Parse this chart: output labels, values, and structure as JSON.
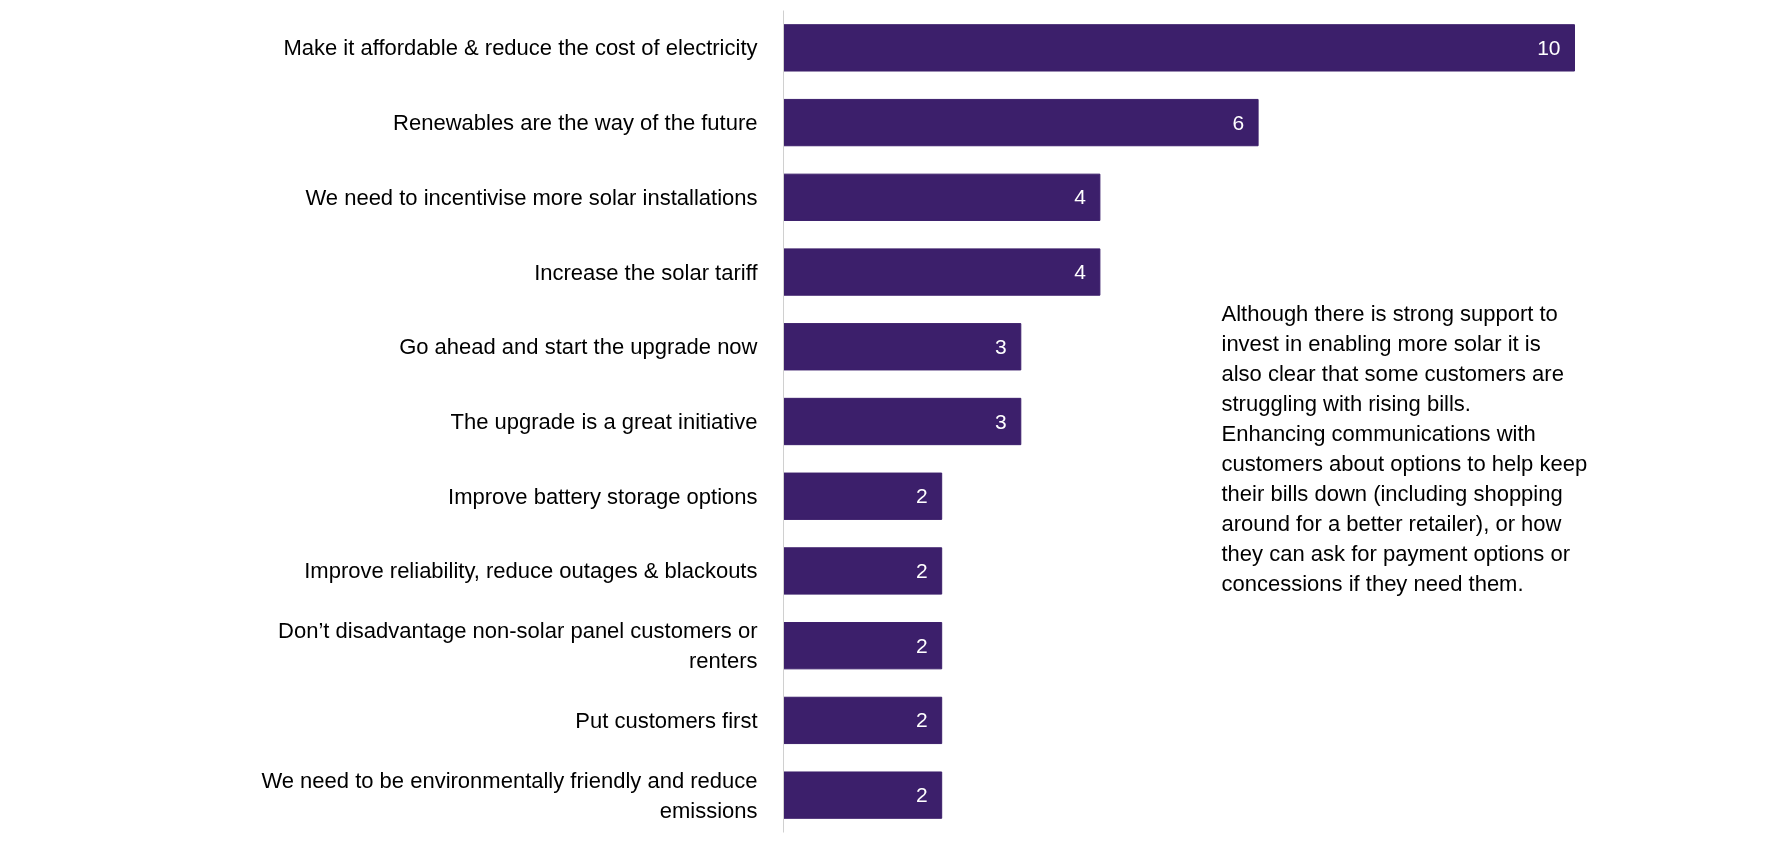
{
  "chart_data": {
    "type": "bar",
    "orientation": "horizontal",
    "data_labels": true,
    "categories": [
      "Make it affordable & reduce the cost of electricity",
      "Renewables are the way of the future",
      "We need to incentivise more solar installations",
      "Increase the solar tariff ",
      "Go ahead and start the upgrade now",
      "The upgrade is a great initiative",
      "Improve battery storage options",
      "Improve reliability, reduce outages & blackouts",
      "Don’t disadvantage non-solar panel customers or renters",
      "Put customers first",
      "We need to be environmentally friendly and reduce emissions"
    ],
    "values": [
      10,
      6,
      4,
      4,
      3,
      3,
      2,
      2,
      2,
      2,
      2
    ],
    "color": "#3c1f6b",
    "grid": false,
    "annotations": [
      "Although there is strong support to invest in enabling more solar it is also clear that some customers are struggling with rising bills. Enhancing communications with customers about options to help keep their bills down (including shopping around for a better retailer), or how they can ask for payment options or concessions if they need them."
    ]
  }
}
